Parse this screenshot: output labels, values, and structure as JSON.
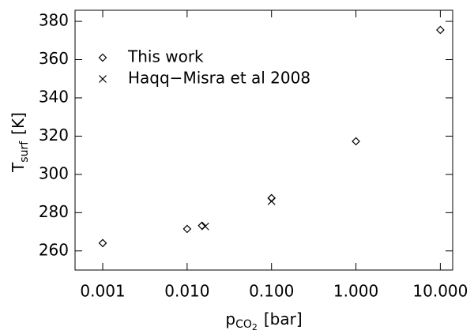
{
  "chart_data": {
    "type": "scatter",
    "xlabel": {
      "main": "p",
      "sub": "CO",
      "subsub": "2",
      "unit": "[bar]"
    },
    "ylabel": {
      "main": "T",
      "sub": "surf",
      "unit": "[K]"
    },
    "xscale": "log",
    "xlim": [
      0.00047,
      14
    ],
    "xticks": [
      0.001,
      {
        "value": 0.01,
        "label": "0.010"
      },
      {
        "value": 0.1,
        "label": "0.100"
      },
      {
        "value": 1,
        "label": "1.000"
      },
      {
        "value": 10,
        "label": "10.000"
      }
    ],
    "ylim": [
      250,
      385.8
    ],
    "yticks": [
      260,
      280,
      300,
      320,
      340,
      360,
      380
    ],
    "color": "#000000",
    "series": [
      {
        "name": "This work",
        "marker": "diamond",
        "x": [
          0.001,
          0.01,
          0.015,
          0.1,
          1,
          10
        ],
        "values": [
          264.1,
          271.5,
          273.2,
          287.6,
          317.3,
          375.5
        ]
      },
      {
        "name": "Haqq−Misra et al 2008",
        "marker": "cross",
        "x": [
          0.0164,
          0.1
        ],
        "values": [
          272.8,
          286
        ]
      }
    ]
  }
}
